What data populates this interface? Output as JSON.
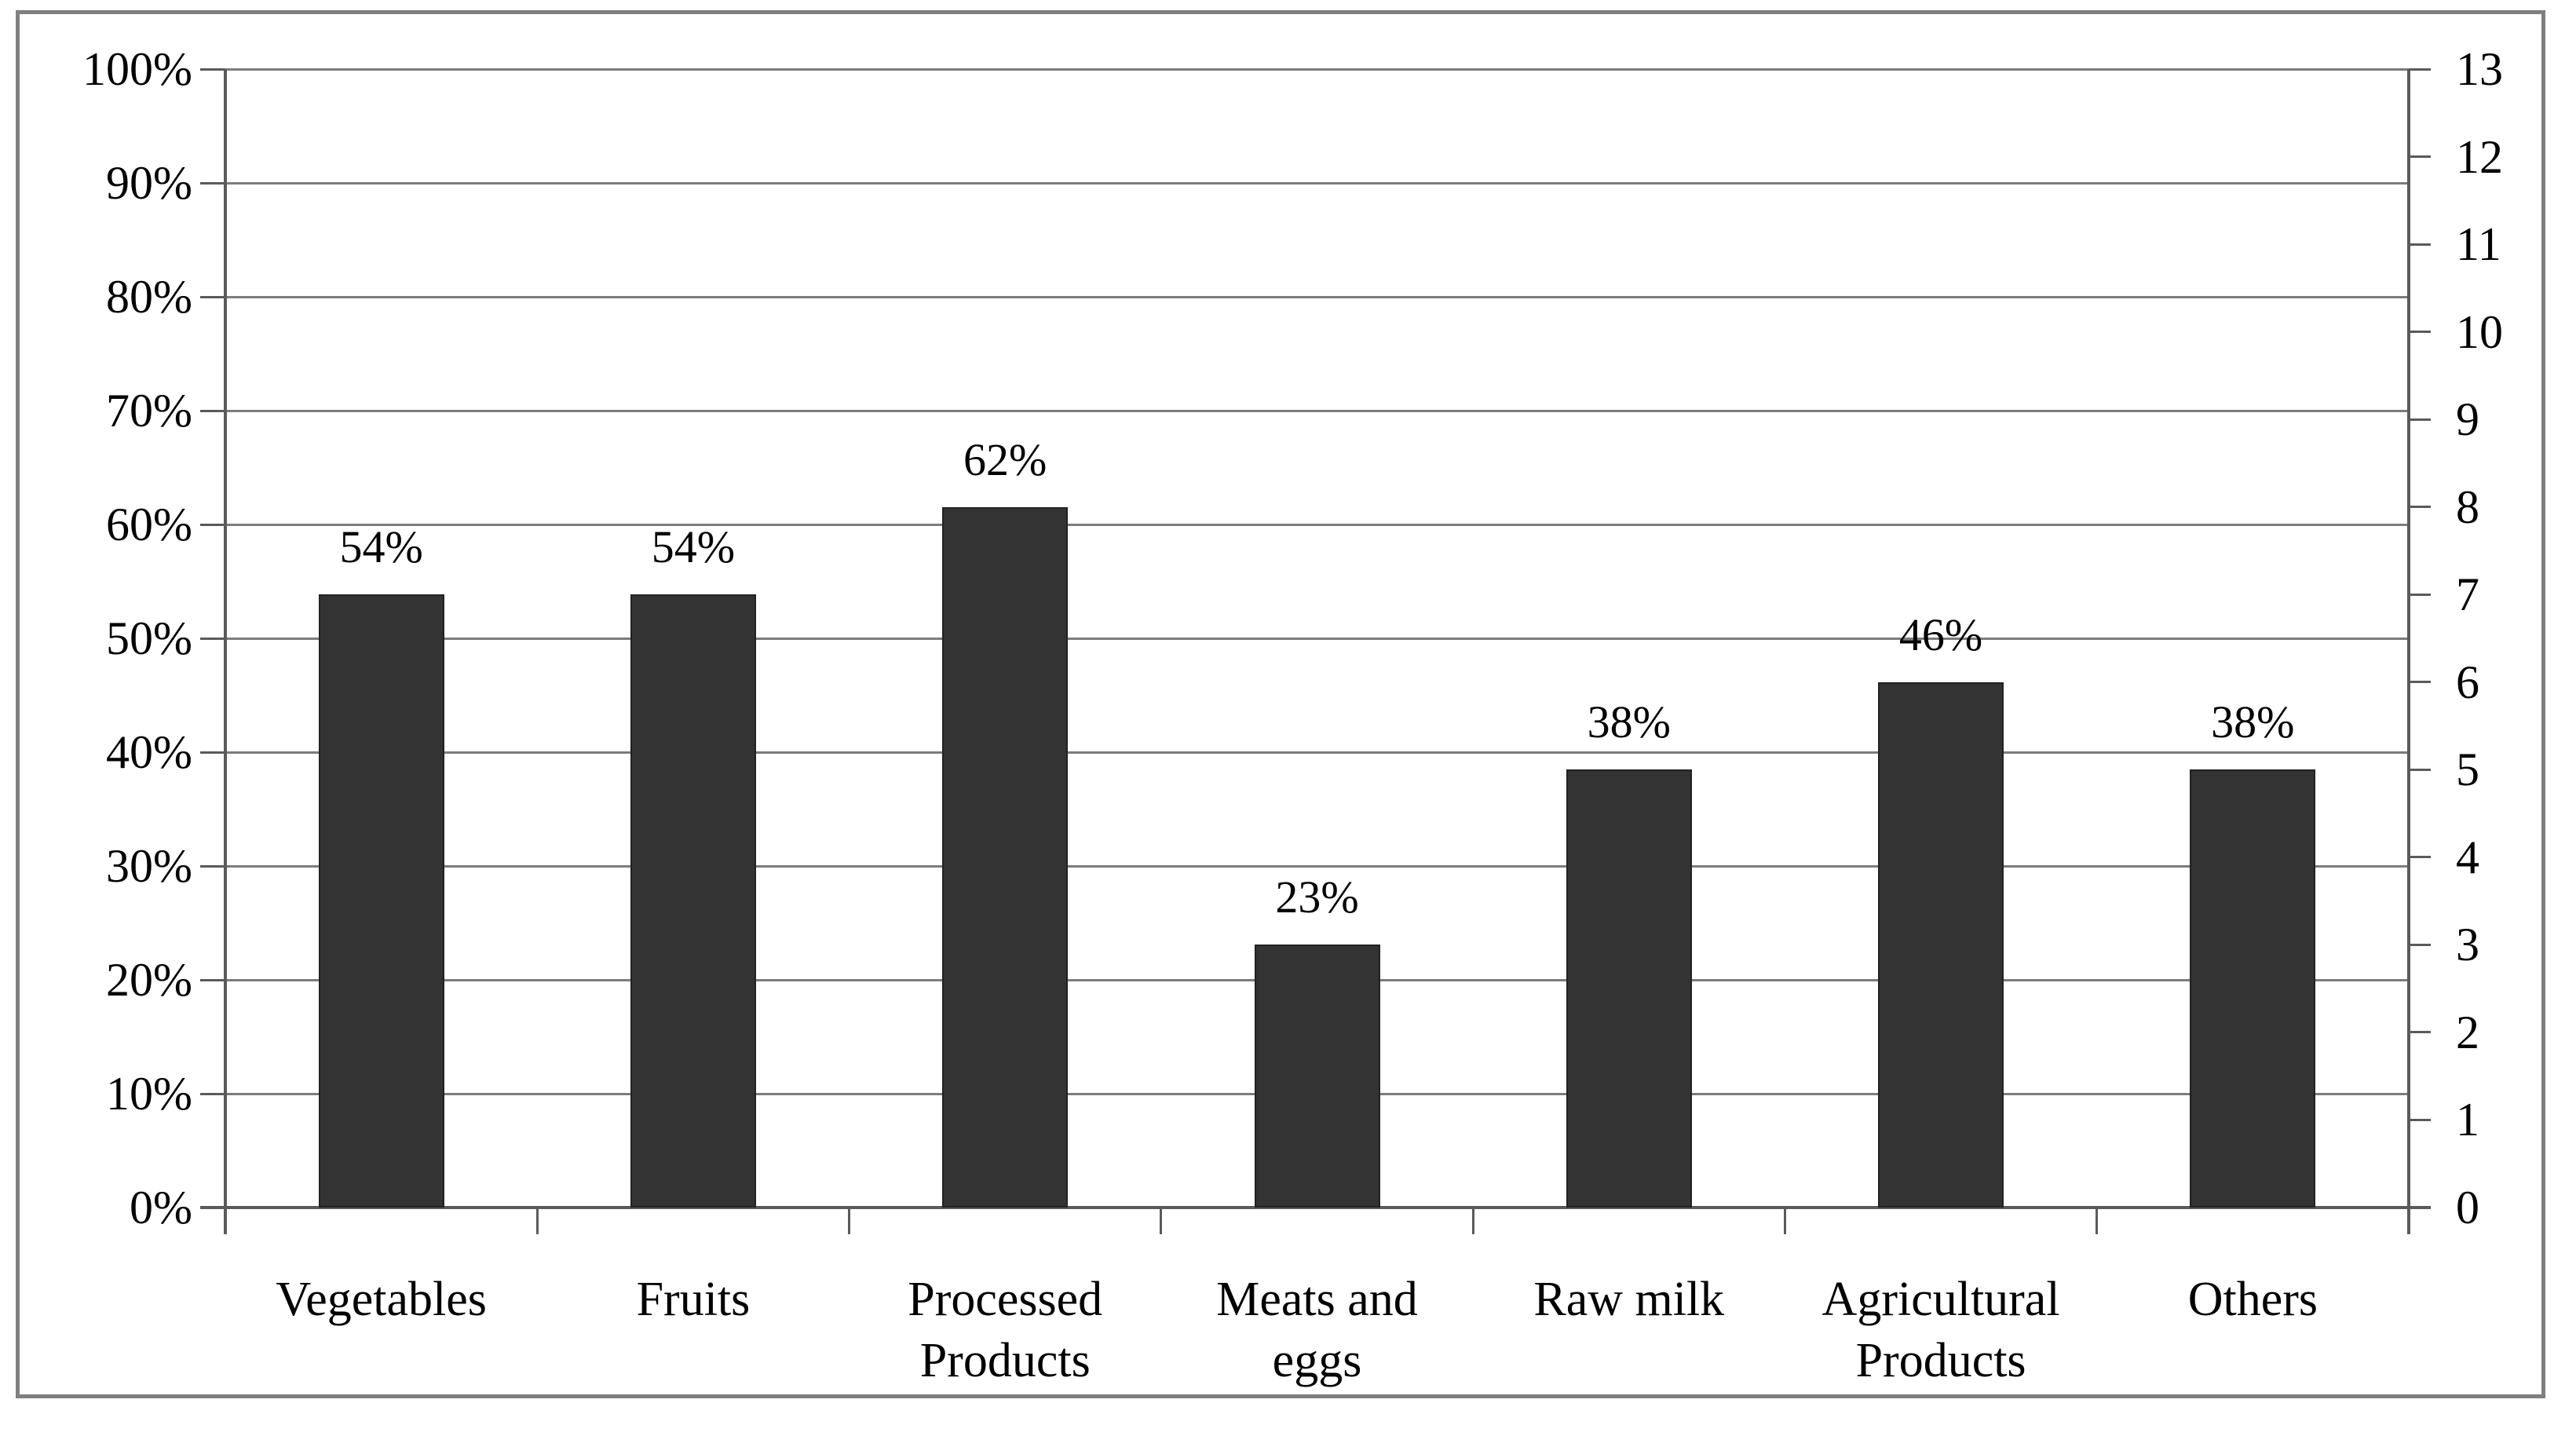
{
  "figure": {
    "background": "#ffffff",
    "frame_border_color": "#7f7f7f"
  },
  "chart_data": {
    "type": "bar",
    "title": "",
    "legend": "none",
    "grid": true,
    "categories": [
      "Vegetables",
      "Fruits",
      "Processed Products",
      "Meats and eggs",
      "Raw milk",
      "Agricultural Products",
      "Others"
    ],
    "category_label_lines": [
      [
        "Vegetables"
      ],
      [
        "Fruits"
      ],
      [
        "Processed",
        "Products"
      ],
      [
        "Meats and",
        "eggs"
      ],
      [
        "Raw milk"
      ],
      [
        "Agricultural",
        "Products"
      ],
      [
        "Others"
      ]
    ],
    "counts": [
      7,
      7,
      8,
      3,
      5,
      6,
      5
    ],
    "values_percent": [
      53.8,
      53.8,
      61.5,
      23.1,
      38.5,
      46.2,
      38.5
    ],
    "data_labels": [
      "54%",
      "54%",
      "62%",
      "23%",
      "38%",
      "46%",
      "38%"
    ],
    "left_axis": {
      "min": 0,
      "max": 100,
      "step": 10,
      "unit": "%",
      "tick_labels": [
        "0%",
        "10%",
        "20%",
        "30%",
        "40%",
        "50%",
        "60%",
        "70%",
        "80%",
        "90%",
        "100%"
      ]
    },
    "right_axis": {
      "min": 0,
      "max": 13,
      "step": 1,
      "tick_labels": [
        "0",
        "1",
        "2",
        "3",
        "4",
        "5",
        "6",
        "7",
        "8",
        "9",
        "10",
        "11",
        "12",
        "13"
      ]
    },
    "bar_color": "#333333",
    "gridline_color": "#7c7c7c",
    "axis_color": "#5a5a5a",
    "text_color": "#000000"
  }
}
